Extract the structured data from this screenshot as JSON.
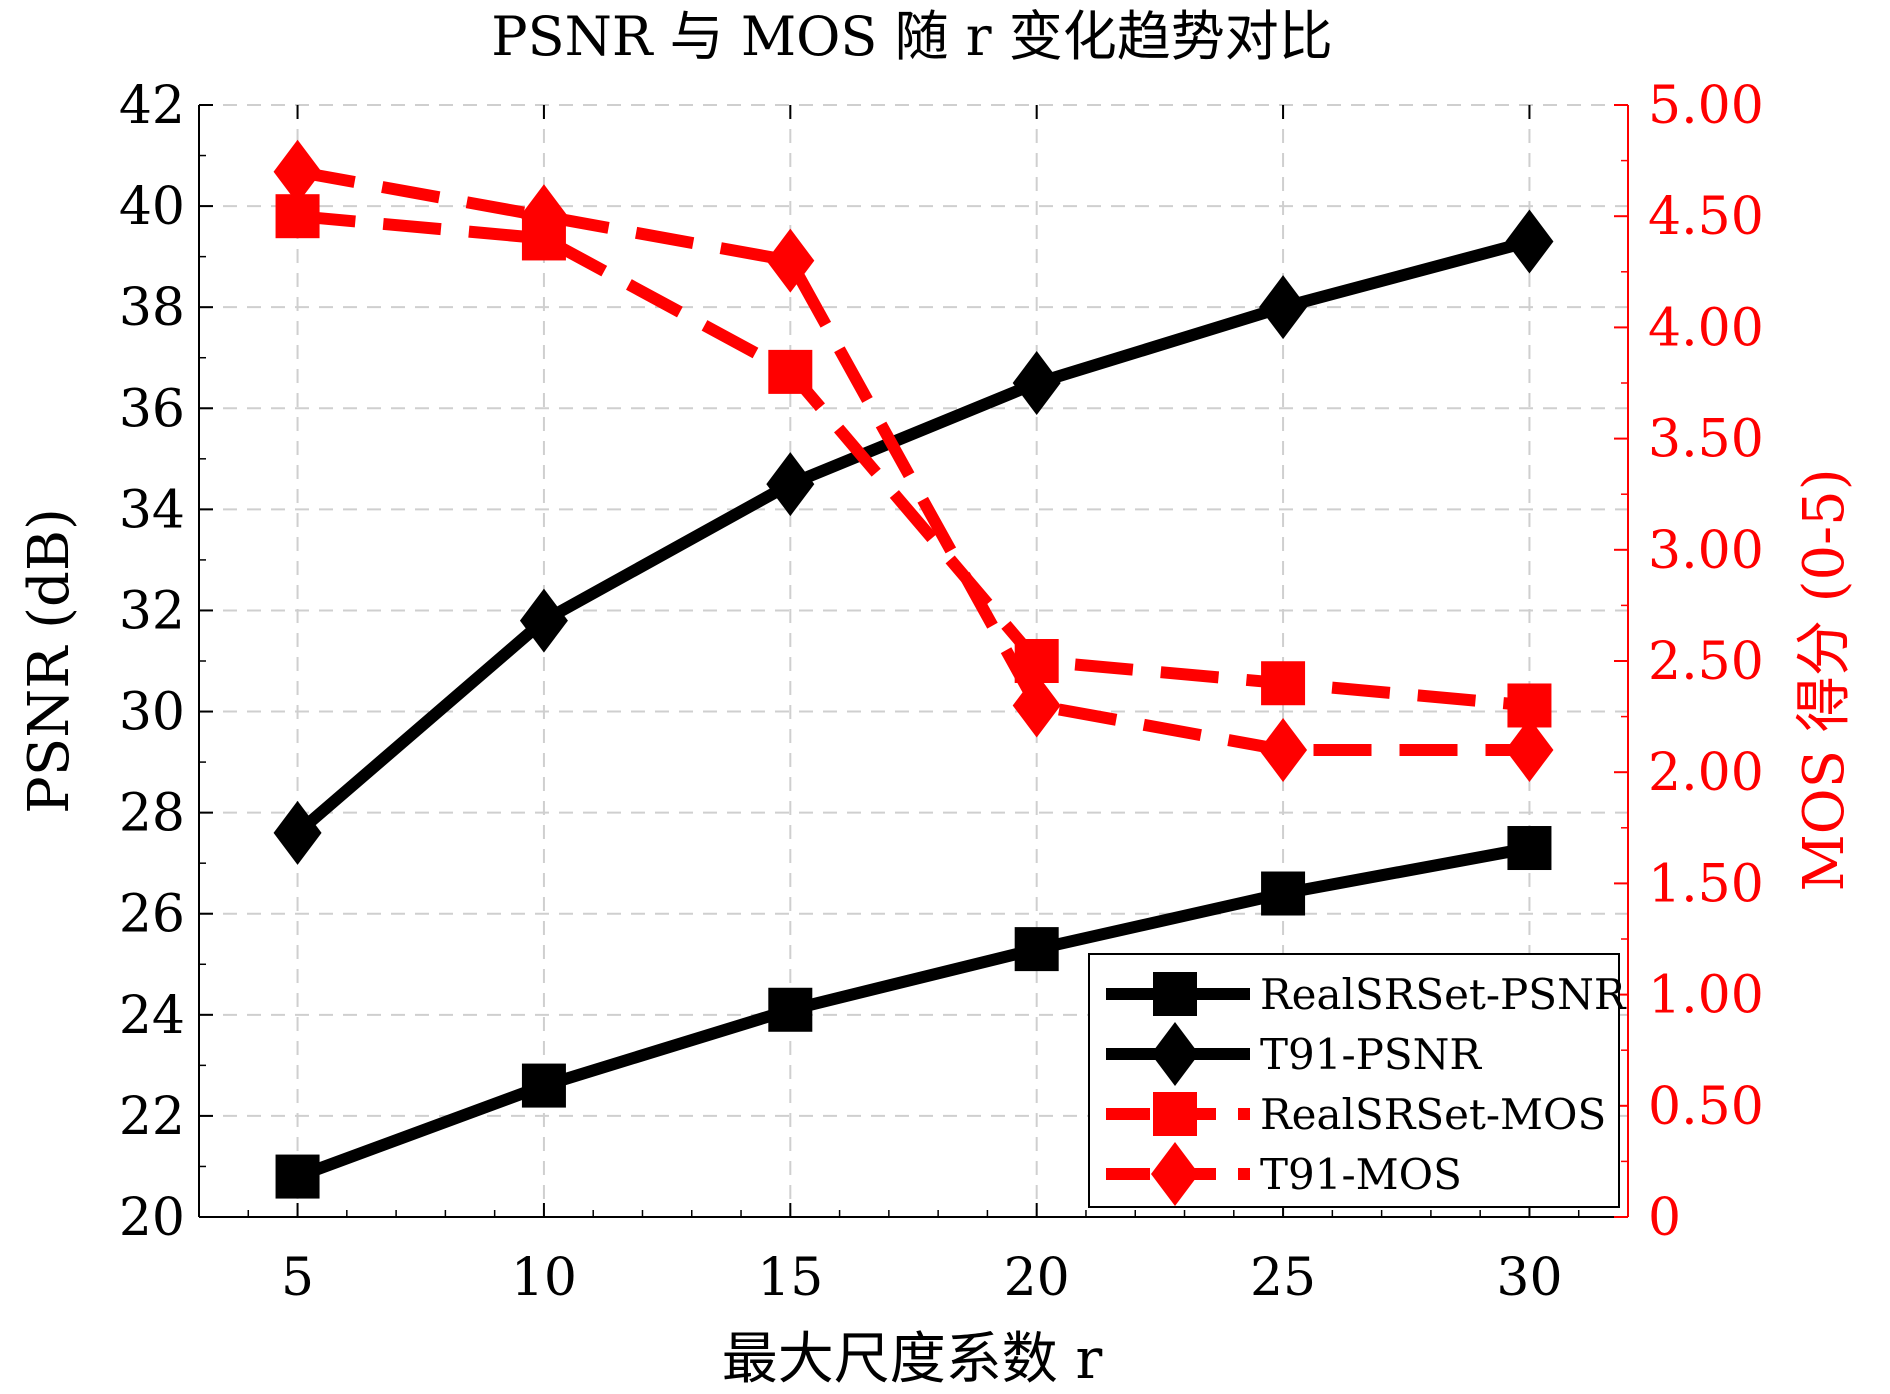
{
  "chart_data": {
    "type": "line",
    "title": "PSNR 与 MOS 随 r 变化趋势对比",
    "xlabel": "最大尺度系数 r",
    "ylabel_left": "PSNR (dB)",
    "ylabel_right": "MOS 得分 (0-5)",
    "x": [
      5,
      10,
      15,
      20,
      25,
      30
    ],
    "xlim": [
      3,
      32
    ],
    "ylim_left": [
      20,
      42
    ],
    "ylim_right": [
      0,
      5
    ],
    "xticks": [
      "5",
      "10",
      "15",
      "20",
      "25",
      "30"
    ],
    "yticks_left": [
      "20",
      "22",
      "24",
      "26",
      "28",
      "30",
      "32",
      "34",
      "36",
      "38",
      "40",
      "42"
    ],
    "yticks_right": [
      "0",
      "0.50",
      "1.00",
      "1.50",
      "2.00",
      "2.50",
      "3.00",
      "3.50",
      "4.00",
      "4.50",
      "5.00"
    ],
    "grid": true,
    "legend_position": "bottom-right",
    "series": [
      {
        "name": "RealSRSet-PSNR",
        "axis": "left",
        "color": "#000000",
        "linestyle": "solid",
        "marker": "square",
        "values": [
          20.8,
          22.6,
          24.1,
          25.3,
          26.4,
          27.3
        ]
      },
      {
        "name": "T91-PSNR",
        "axis": "left",
        "color": "#000000",
        "linestyle": "solid",
        "marker": "diamond",
        "values": [
          27.6,
          31.8,
          34.5,
          36.5,
          38.0,
          39.3
        ]
      },
      {
        "name": "RealSRSet-MOS",
        "axis": "right",
        "color": "#ff0000",
        "linestyle": "dashed",
        "marker": "square",
        "values": [
          4.5,
          4.4,
          3.8,
          2.5,
          2.4,
          2.3
        ]
      },
      {
        "name": "T91-MOS",
        "axis": "right",
        "color": "#ff0000",
        "linestyle": "dashed",
        "marker": "diamond",
        "values": [
          4.7,
          4.5,
          4.3,
          2.3,
          2.1,
          2.1
        ]
      }
    ]
  }
}
